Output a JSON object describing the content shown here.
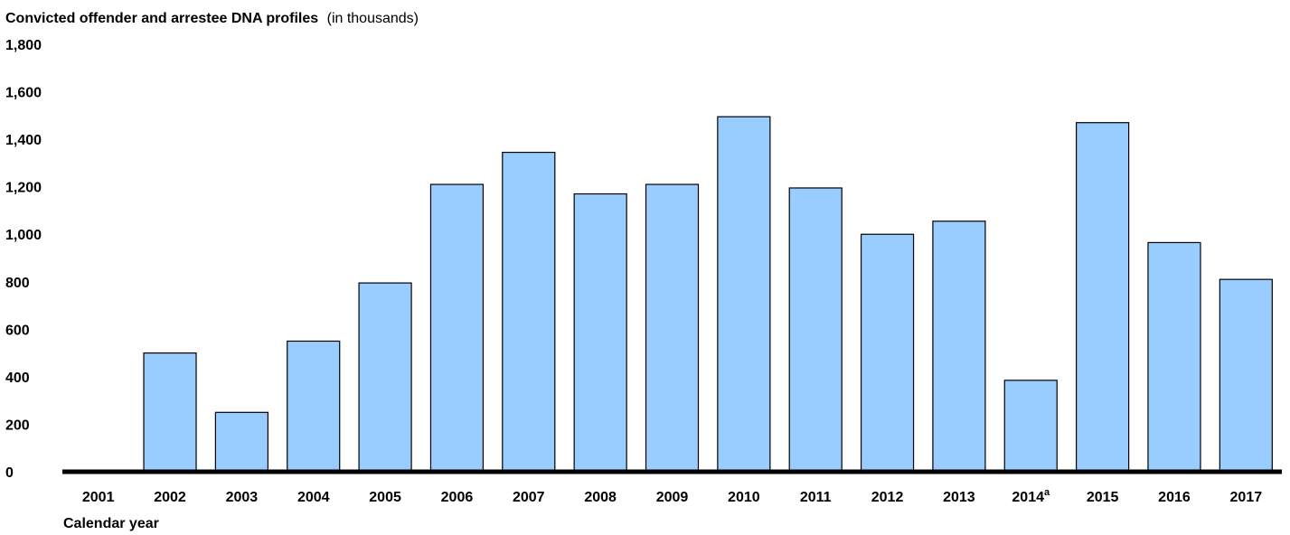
{
  "chart_data": {
    "type": "bar",
    "title": "Convicted offender and arrestee DNA profiles",
    "title_suffix": "(in thousands)",
    "xlabel": "Calendar year",
    "ylabel": "",
    "ylim": [
      0,
      1800
    ],
    "yticks": [
      {
        "value": 0,
        "label": "0"
      },
      {
        "value": 200,
        "label": "200"
      },
      {
        "value": 400,
        "label": "400"
      },
      {
        "value": 600,
        "label": "600"
      },
      {
        "value": 800,
        "label": "800"
      },
      {
        "value": 1000,
        "label": "1,000"
      },
      {
        "value": 1200,
        "label": "1,200"
      },
      {
        "value": 1400,
        "label": "1,400"
      },
      {
        "value": 1600,
        "label": "1,600"
      },
      {
        "value": 1800,
        "label": "1,800"
      }
    ],
    "grid": false,
    "bar_color": "#99ccff",
    "categories": [
      {
        "label": "2001",
        "sup": ""
      },
      {
        "label": "2002",
        "sup": ""
      },
      {
        "label": "2003",
        "sup": ""
      },
      {
        "label": "2004",
        "sup": ""
      },
      {
        "label": "2005",
        "sup": ""
      },
      {
        "label": "2006",
        "sup": ""
      },
      {
        "label": "2007",
        "sup": ""
      },
      {
        "label": "2008",
        "sup": ""
      },
      {
        "label": "2009",
        "sup": ""
      },
      {
        "label": "2010",
        "sup": ""
      },
      {
        "label": "2011",
        "sup": ""
      },
      {
        "label": "2012",
        "sup": ""
      },
      {
        "label": "2013",
        "sup": ""
      },
      {
        "label": "2014",
        "sup": "a"
      },
      {
        "label": "2015",
        "sup": ""
      },
      {
        "label": "2016",
        "sup": ""
      },
      {
        "label": "2017",
        "sup": ""
      }
    ],
    "values": [
      0,
      500,
      250,
      550,
      795,
      1210,
      1345,
      1170,
      1210,
      1495,
      1195,
      1000,
      1055,
      385,
      1470,
      965,
      810
    ]
  }
}
